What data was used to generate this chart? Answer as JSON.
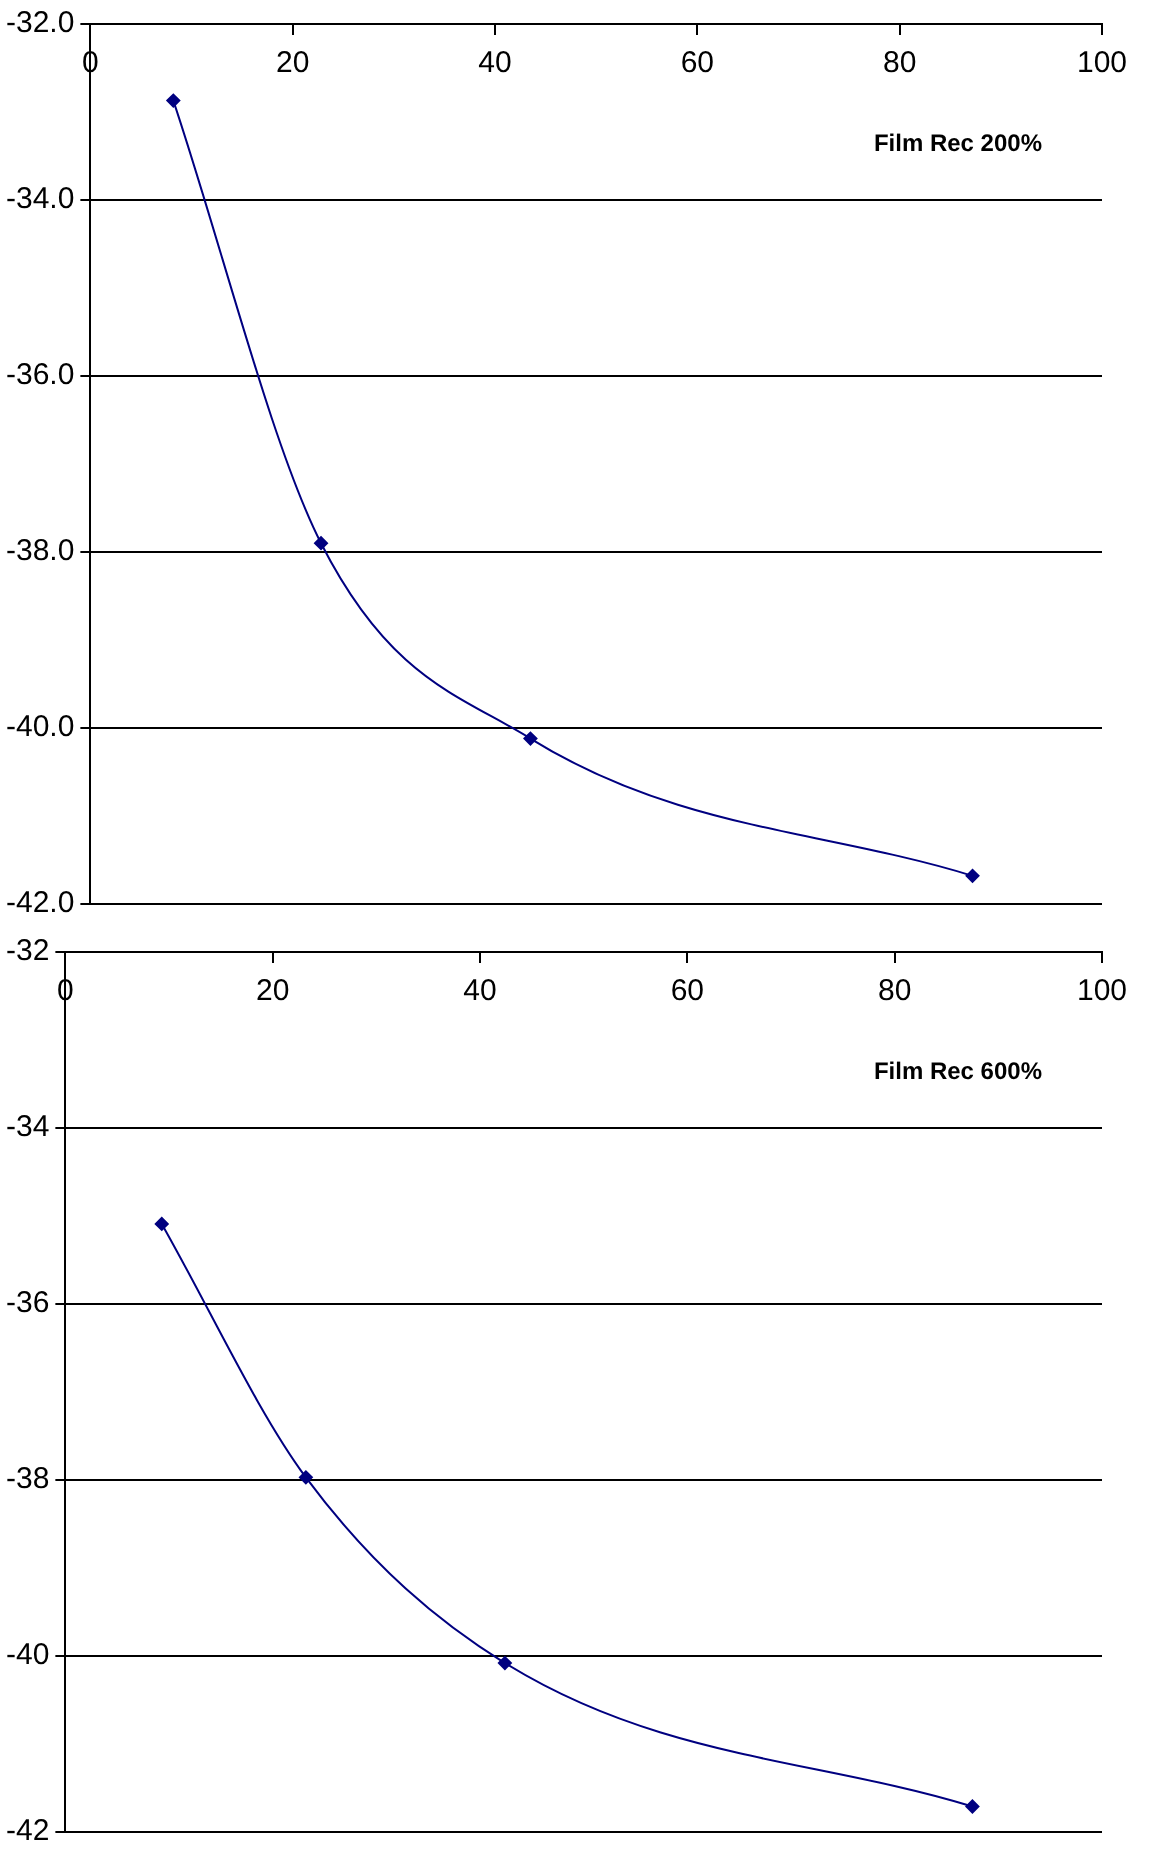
{
  "chart_data": [
    {
      "type": "line",
      "title": "Film Rec 200%",
      "x": [
        8.2,
        22.8,
        43.5,
        87.2
      ],
      "series": [
        {
          "color": "#000080",
          "values": [
            -32.87,
            -37.9,
            -40.12,
            -41.68
          ]
        }
      ],
      "xlim": [
        0,
        100
      ],
      "xticks": [
        0,
        20,
        40,
        60,
        80,
        100
      ],
      "ylim": [
        -42,
        -32
      ],
      "yticks": [
        {
          "value": -42,
          "label": "-42.0"
        },
        {
          "value": -40,
          "label": "-40.0"
        },
        {
          "value": -38,
          "label": "-38.0"
        },
        {
          "value": -36,
          "label": "-36.0"
        },
        {
          "value": -34,
          "label": "-34.0"
        },
        {
          "value": -32,
          "label": "-32.0"
        }
      ],
      "grid": "y",
      "legend": false,
      "marker": "diamond",
      "line_style": "solid"
    },
    {
      "type": "line",
      "title": "Film Rec 600%",
      "x": [
        9.3,
        23.2,
        42.4,
        87.5
      ],
      "series": [
        {
          "color": "#000080",
          "values": [
            -35.09,
            -37.97,
            -40.08,
            -41.71
          ]
        }
      ],
      "xlim": [
        0,
        100
      ],
      "xticks": [
        0,
        20,
        40,
        60,
        80,
        100
      ],
      "ylim": [
        -42,
        -32
      ],
      "yticks": [
        -42,
        -40,
        -38,
        -36,
        -34,
        -32
      ],
      "grid": "y",
      "legend": false,
      "marker": "diamond",
      "line_style": "solid"
    }
  ]
}
